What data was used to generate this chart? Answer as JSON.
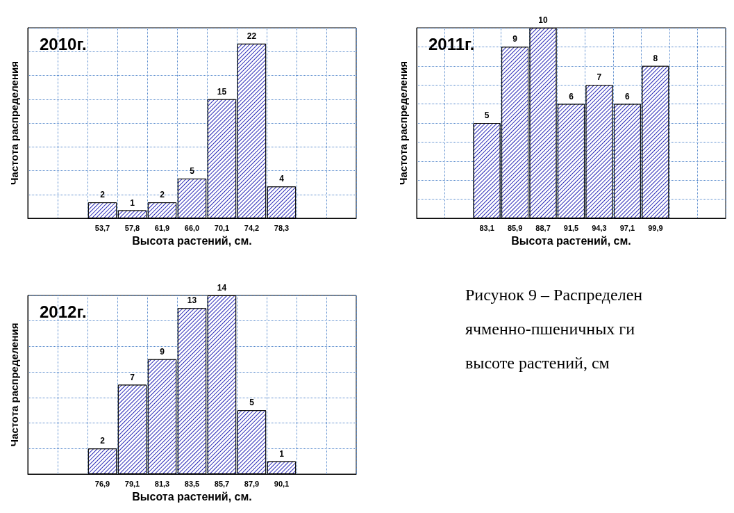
{
  "chart_data": [
    {
      "type": "bar",
      "title": "2010г.",
      "xlabel": "Высота растений, см.",
      "ylabel": "Частота распределения",
      "categories": [
        null,
        null,
        "53,7",
        "57,8",
        "61,9",
        "66,0",
        "70,1",
        "74,2",
        "78,3",
        null,
        null
      ],
      "values": [
        null,
        null,
        2,
        1,
        2,
        5,
        15,
        22,
        4,
        null,
        null
      ],
      "color": "#2a2ab8",
      "data_labels": true,
      "grid": true,
      "tick_labels": "x"
    },
    {
      "type": "bar",
      "title": "2011г.",
      "xlabel": "Высота растений, см.",
      "ylabel": "Частота распределения",
      "categories": [
        null,
        null,
        "83,1",
        "85,9",
        "88,7",
        "91,5",
        "94,3",
        "97,1",
        "99,9",
        null,
        null
      ],
      "values": [
        null,
        null,
        5,
        9,
        10,
        6,
        7,
        6,
        8,
        null,
        null
      ],
      "color": "#2a2ab8",
      "data_labels": true,
      "grid": true,
      "tick_labels": "x"
    },
    {
      "type": "bar",
      "title": "2012г.",
      "xlabel": "Высота растений, см.",
      "ylabel": "Частота распределения",
      "categories": [
        null,
        null,
        "76,9",
        "79,1",
        "81,3",
        "83,5",
        "85,7",
        "87,9",
        "90,1",
        null,
        null
      ],
      "values": [
        null,
        null,
        2,
        7,
        9,
        13,
        14,
        5,
        1,
        null,
        null
      ],
      "color": "#2a2ab8",
      "data_labels": true,
      "grid": true,
      "tick_labels": "x"
    },
    {
      "type": "other",
      "annotations": [
        "Рисунок 9 – Распределен",
        "ячменно-пшеничных ги",
        "высоте растений, см"
      ]
    }
  ]
}
